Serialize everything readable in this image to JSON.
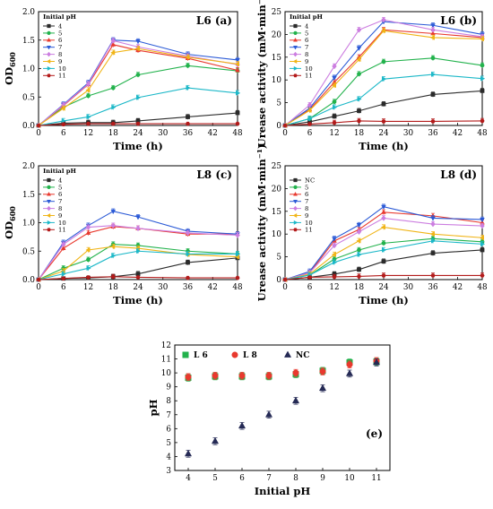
{
  "chart_data": [
    {
      "id": "a",
      "type": "line",
      "title": "L6 (a)",
      "xlabel": "Time (h)",
      "ylabel": "OD600",
      "ylabel_main": "OD",
      "ylabel_sub": "600",
      "xlim": [
        0,
        48
      ],
      "ylim": [
        0,
        2.0
      ],
      "xticks": [
        0,
        6,
        12,
        18,
        24,
        30,
        36,
        42,
        48
      ],
      "yticks": [
        0.0,
        0.5,
        1.0,
        1.5,
        2.0
      ],
      "ytick_labels": [
        "0.0",
        "0.5",
        "1.0",
        "1.5",
        "2.0"
      ],
      "legend_title": "Initial pH",
      "legend_position": "top-left",
      "x": [
        0,
        6,
        12,
        18,
        24,
        36,
        48
      ],
      "series": [
        {
          "name": "4",
          "color": "#2b2b2b",
          "marker": "square",
          "values": [
            0.0,
            0.04,
            0.05,
            0.05,
            0.08,
            0.15,
            0.22
          ]
        },
        {
          "name": "5",
          "color": "#22b24c",
          "marker": "circle",
          "values": [
            0.0,
            0.32,
            0.52,
            0.66,
            0.89,
            1.05,
            0.96
          ]
        },
        {
          "name": "6",
          "color": "#e8392e",
          "marker": "triangle-up",
          "values": [
            0.0,
            0.35,
            0.72,
            1.42,
            1.32,
            1.18,
            0.97
          ]
        },
        {
          "name": "7",
          "color": "#2a59d6",
          "marker": "triangle-down",
          "values": [
            0.0,
            0.37,
            0.75,
            1.5,
            1.48,
            1.25,
            1.15
          ]
        },
        {
          "name": "8",
          "color": "#cc7ee0",
          "marker": "diamond",
          "values": [
            0.0,
            0.36,
            0.73,
            1.49,
            1.38,
            1.22,
            1.07
          ]
        },
        {
          "name": "9",
          "color": "#f0b416",
          "marker": "triangle-left",
          "values": [
            0.0,
            0.3,
            0.62,
            1.28,
            1.35,
            1.2,
            1.08
          ]
        },
        {
          "name": "10",
          "color": "#1cb8c8",
          "marker": "triangle-right",
          "values": [
            0.0,
            0.08,
            0.15,
            0.32,
            0.49,
            0.66,
            0.57
          ]
        },
        {
          "name": "11",
          "color": "#b31b1b",
          "marker": "hexagon",
          "values": [
            0.0,
            0.02,
            0.03,
            0.03,
            0.03,
            0.03,
            0.03
          ]
        }
      ]
    },
    {
      "id": "b",
      "type": "line",
      "title": "L6 (b)",
      "xlabel": "Time (h)",
      "ylabel": "Urease activity (mM·min⁻¹)",
      "xlim": [
        0,
        48
      ],
      "ylim": [
        0,
        25
      ],
      "xticks": [
        0,
        6,
        12,
        18,
        24,
        30,
        36,
        42,
        48
      ],
      "yticks": [
        0,
        5,
        10,
        15,
        20,
        25
      ],
      "ytick_labels": [
        "0",
        "5",
        "10",
        "15",
        "20",
        "25"
      ],
      "legend_title": "Initial pH",
      "legend_position": "top-left",
      "x": [
        0,
        6,
        12,
        18,
        24,
        36,
        48
      ],
      "series": [
        {
          "name": "4",
          "color": "#2b2b2b",
          "marker": "square",
          "values": [
            0.0,
            0.8,
            2.0,
            3.2,
            4.7,
            6.8,
            7.6
          ]
        },
        {
          "name": "5",
          "color": "#22b24c",
          "marker": "circle",
          "values": [
            0.0,
            1.5,
            5.2,
            11.3,
            14.0,
            14.8,
            13.2
          ]
        },
        {
          "name": "6",
          "color": "#e8392e",
          "marker": "triangle-up",
          "values": [
            0.0,
            3.5,
            9.5,
            15.0,
            21.0,
            20.2,
            19.3
          ]
        },
        {
          "name": "7",
          "color": "#2a59d6",
          "marker": "triangle-down",
          "values": [
            0.0,
            3.8,
            10.5,
            17.0,
            22.8,
            22.0,
            20.0
          ]
        },
        {
          "name": "8",
          "color": "#cc7ee0",
          "marker": "diamond",
          "values": [
            0.0,
            4.5,
            13.0,
            21.0,
            23.2,
            21.0,
            19.5
          ]
        },
        {
          "name": "9",
          "color": "#f0b416",
          "marker": "triangle-left",
          "values": [
            0.0,
            3.3,
            8.8,
            14.5,
            20.8,
            19.3,
            19.0
          ]
        },
        {
          "name": "10",
          "color": "#1cb8c8",
          "marker": "triangle-right",
          "values": [
            0.0,
            1.5,
            4.0,
            5.8,
            10.2,
            11.2,
            10.3
          ]
        },
        {
          "name": "11",
          "color": "#b31b1b",
          "marker": "hexagon",
          "values": [
            0.0,
            0.3,
            0.6,
            1.0,
            0.9,
            0.9,
            1.0
          ]
        }
      ]
    },
    {
      "id": "c",
      "type": "line",
      "title": "L8 (c)",
      "xlabel": "Time (h)",
      "ylabel": "OD600",
      "ylabel_main": "OD",
      "ylabel_sub": "600",
      "xlim": [
        0,
        48
      ],
      "ylim": [
        0,
        2.0
      ],
      "xticks": [
        0,
        6,
        12,
        18,
        24,
        30,
        36,
        42,
        48
      ],
      "yticks": [
        0.0,
        0.5,
        1.0,
        1.5,
        2.0
      ],
      "ytick_labels": [
        "0.0",
        "0.5",
        "1.0",
        "1.5",
        "2.0"
      ],
      "legend_title": "Initial pH",
      "legend_position": "top-left",
      "x": [
        0,
        6,
        12,
        18,
        24,
        36,
        48
      ],
      "series": [
        {
          "name": "4",
          "color": "#2b2b2b",
          "marker": "square",
          "values": [
            0.0,
            0.02,
            0.03,
            0.05,
            0.1,
            0.3,
            0.38
          ]
        },
        {
          "name": "5",
          "color": "#22b24c",
          "marker": "circle",
          "values": [
            0.0,
            0.2,
            0.35,
            0.62,
            0.6,
            0.5,
            0.45
          ]
        },
        {
          "name": "6",
          "color": "#e8392e",
          "marker": "triangle-up",
          "values": [
            0.0,
            0.55,
            0.82,
            0.93,
            0.9,
            0.8,
            0.8
          ]
        },
        {
          "name": "7",
          "color": "#2a59d6",
          "marker": "triangle-down",
          "values": [
            0.0,
            0.65,
            0.95,
            1.2,
            1.1,
            0.85,
            0.8
          ]
        },
        {
          "name": "8",
          "color": "#cc7ee0",
          "marker": "diamond",
          "values": [
            0.0,
            0.62,
            0.92,
            0.95,
            0.9,
            0.82,
            0.78
          ]
        },
        {
          "name": "9",
          "color": "#f0b416",
          "marker": "triangle-left",
          "values": [
            0.0,
            0.15,
            0.52,
            0.58,
            0.55,
            0.44,
            0.4
          ]
        },
        {
          "name": "10",
          "color": "#1cb8c8",
          "marker": "triangle-right",
          "values": [
            0.0,
            0.1,
            0.2,
            0.42,
            0.5,
            0.45,
            0.45
          ]
        },
        {
          "name": "11",
          "color": "#b31b1b",
          "marker": "hexagon",
          "values": [
            0.0,
            0.02,
            0.04,
            0.05,
            0.04,
            0.03,
            0.03
          ]
        }
      ]
    },
    {
      "id": "d",
      "type": "line",
      "title": "L8 (d)",
      "xlabel": "Time (h)",
      "ylabel": "Urease activity (mM·min⁻¹)",
      "xlim": [
        0,
        48
      ],
      "ylim": [
        0,
        25
      ],
      "xticks": [
        0,
        6,
        12,
        18,
        24,
        30,
        36,
        42,
        48
      ],
      "yticks": [
        0,
        5,
        10,
        15,
        20,
        25
      ],
      "ytick_labels": [
        "0",
        "5",
        "10",
        "15",
        "20",
        "25"
      ],
      "legend_title": "",
      "legend_position": "top-left",
      "x": [
        0,
        6,
        12,
        18,
        24,
        36,
        48
      ],
      "series": [
        {
          "name": "NC",
          "color": "#2b2b2b",
          "marker": "square",
          "values": [
            0.0,
            0.5,
            1.2,
            2.2,
            4.0,
            5.8,
            6.5
          ]
        },
        {
          "name": "5",
          "color": "#22b24c",
          "marker": "circle",
          "values": [
            0.0,
            1.0,
            4.5,
            6.5,
            8.0,
            9.0,
            8.3
          ]
        },
        {
          "name": "6",
          "color": "#e8392e",
          "marker": "triangle-up",
          "values": [
            0.0,
            1.5,
            8.5,
            11.0,
            14.8,
            14.0,
            12.5
          ]
        },
        {
          "name": "7",
          "color": "#2a59d6",
          "marker": "triangle-down",
          "values": [
            0.0,
            1.8,
            9.0,
            12.0,
            16.0,
            13.5,
            13.2
          ]
        },
        {
          "name": "8",
          "color": "#cc7ee0",
          "marker": "diamond",
          "values": [
            0.0,
            1.5,
            7.5,
            10.5,
            13.5,
            12.2,
            11.8
          ]
        },
        {
          "name": "9",
          "color": "#f0b416",
          "marker": "triangle-left",
          "values": [
            0.0,
            1.2,
            5.5,
            8.5,
            11.5,
            10.0,
            9.2
          ]
        },
        {
          "name": "10",
          "color": "#1cb8c8",
          "marker": "triangle-right",
          "values": [
            0.0,
            1.0,
            3.8,
            5.5,
            6.5,
            8.5,
            7.8
          ]
        },
        {
          "name": "11",
          "color": "#b31b1b",
          "marker": "hexagon",
          "values": [
            0.0,
            0.5,
            0.6,
            0.7,
            0.9,
            0.9,
            0.9
          ]
        }
      ]
    },
    {
      "id": "e",
      "type": "scatter",
      "title": "(e)",
      "xlabel": "Initial pH",
      "ylabel": "pH",
      "xlim": [
        3.5,
        11.5
      ],
      "ylim": [
        3,
        12
      ],
      "xticks": [
        4,
        5,
        6,
        7,
        8,
        9,
        10,
        11
      ],
      "yticks": [
        3,
        4,
        5,
        6,
        7,
        8,
        9,
        10,
        11,
        12
      ],
      "ytick_labels": [
        "3",
        "4",
        "5",
        "6",
        "7",
        "8",
        "9",
        "10",
        "11",
        "12"
      ],
      "legend_position": "top",
      "x": [
        4,
        5,
        6,
        7,
        8,
        9,
        10,
        11
      ],
      "series": [
        {
          "name": "L 6",
          "color": "#22b24c",
          "marker": "square",
          "values": [
            9.65,
            9.75,
            9.75,
            9.75,
            9.9,
            10.15,
            10.75,
            10.8
          ]
        },
        {
          "name": "L 8",
          "color": "#e8392e",
          "marker": "circle",
          "values": [
            9.7,
            9.8,
            9.8,
            9.8,
            10.0,
            10.1,
            10.6,
            10.85
          ]
        },
        {
          "name": "NC",
          "color": "#252a55",
          "marker": "triangle-up",
          "values": [
            4.2,
            5.1,
            6.2,
            7.0,
            8.0,
            8.9,
            9.95,
            10.75
          ]
        }
      ]
    }
  ]
}
